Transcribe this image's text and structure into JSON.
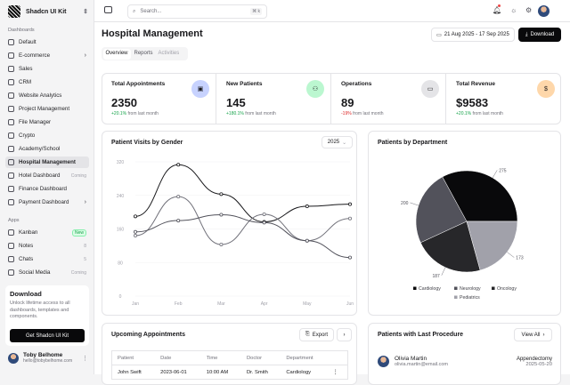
{
  "sidebar": {
    "brand": "Shadcn UI Kit",
    "section_dashboards": "Dashboards",
    "section_apps": "Apps",
    "dashboards": [
      {
        "label": "Default"
      },
      {
        "label": "E-commerce",
        "chevron": true
      },
      {
        "label": "Sales"
      },
      {
        "label": "CRM"
      },
      {
        "label": "Website Analytics"
      },
      {
        "label": "Project Management"
      },
      {
        "label": "File Manager"
      },
      {
        "label": "Crypto"
      },
      {
        "label": "Academy/School"
      },
      {
        "label": "Hospital Management",
        "active": true
      },
      {
        "label": "Hotel Dashboard",
        "tag": "Coming"
      },
      {
        "label": "Finance Dashboard"
      },
      {
        "label": "Payment Dashboard",
        "chevron": true
      }
    ],
    "apps": [
      {
        "label": "Kanban",
        "badge": "New"
      },
      {
        "label": "Notes",
        "tag": "8"
      },
      {
        "label": "Chats",
        "tag": "5"
      },
      {
        "label": "Social Media",
        "tag": "Coming"
      }
    ],
    "download": {
      "title": "Download",
      "text": "Unlock lifetime access to all dashboards, templates and components.",
      "button": "Get Shadcn UI Kit"
    },
    "user": {
      "name": "Toby Belhome",
      "email": "hello@tobybelhome.com"
    }
  },
  "topbar": {
    "search_placeholder": "Search...",
    "shortcut": "⌘ k"
  },
  "header": {
    "title": "Hospital Management",
    "date_range": "21 Aug 2025 - 17 Sep 2025",
    "download": "Download",
    "tabs": [
      "Overview",
      "Reports",
      "Activities"
    ]
  },
  "stats": [
    {
      "title": "Total Appointments",
      "value": "2350",
      "change": "+20.1%",
      "suffix": "from last month",
      "color": "#16a34a",
      "icon_bg": "#c7d2fe",
      "icon": "calendar-icon"
    },
    {
      "title": "New Patients",
      "value": "145",
      "change": "+180.1%",
      "suffix": "from last month",
      "color": "#16a34a",
      "icon_bg": "#bbf7d0",
      "icon": "users-icon"
    },
    {
      "title": "Operations",
      "value": "89",
      "change": "-19%",
      "suffix": "from last month",
      "color": "#dc2626",
      "icon_bg": "#e4e4e7",
      "icon": "card-icon"
    },
    {
      "title": "Total Revenue",
      "value": "$9583",
      "change": "+20.1%",
      "suffix": "from last month",
      "color": "#16a34a",
      "icon_bg": "#fed7aa",
      "icon": "dollar-icon"
    }
  ],
  "chart_data": [
    {
      "type": "line",
      "title": "Patient Visits by Gender",
      "year": "2025",
      "categories": [
        "Jan",
        "Feb",
        "Mar",
        "Apr",
        "May",
        "Jun"
      ],
      "ylim": [
        0,
        320
      ],
      "yticks": [
        0,
        80,
        160,
        240,
        320
      ],
      "series": [
        {
          "values": [
            190,
            313,
            243,
            177,
            214,
            219
          ],
          "color": "#18181b"
        },
        {
          "values": [
            144,
            237,
            123,
            195,
            132,
            185
          ],
          "color": "#71717a"
        },
        {
          "values": [
            153,
            180,
            194,
            175,
            132,
            92
          ],
          "color": "#52525b"
        }
      ]
    },
    {
      "type": "pie",
      "title": "Patients by Department",
      "labels": [
        "Cardiology",
        "Neurology",
        "Oncology",
        "Pediatrics"
      ],
      "values": [
        275,
        200,
        187,
        173
      ],
      "colors": [
        "#09090b",
        "#52525b",
        "#27272a",
        "#a1a1aa"
      ],
      "legend": "bottom"
    }
  ],
  "appointments": {
    "title": "Upcoming Appointments",
    "export": "Export",
    "columns": [
      "Patient",
      "Date",
      "Time",
      "Doctor",
      "Department"
    ],
    "rows": [
      [
        "John Swift",
        "2023-06-01",
        "10:00 AM",
        "Dr. Smith",
        "Cardiology"
      ]
    ]
  },
  "procedures": {
    "title": "Patients with Last Procedure",
    "view_all": "View All",
    "items": [
      {
        "name": "Olivia Martin",
        "email": "olivia.martin@email.com",
        "procedure": "Appendectomy",
        "date": "2025-05-20"
      }
    ]
  }
}
